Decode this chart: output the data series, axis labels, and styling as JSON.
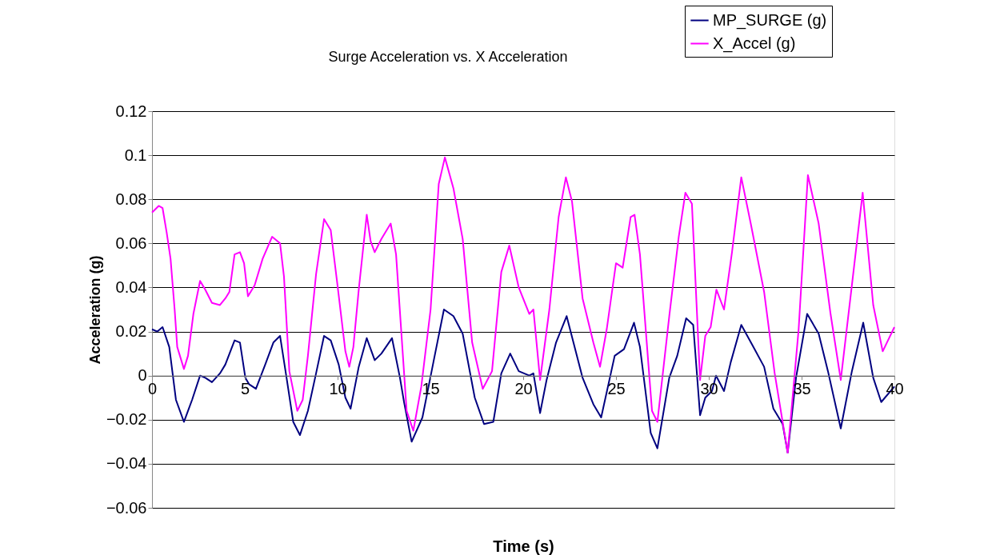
{
  "chart_data": {
    "type": "line",
    "title": "Surge Acceleration vs. X Acceleration",
    "xlabel": "Time (s)",
    "ylabel": "Acceleration (g)",
    "xlim": [
      0,
      40
    ],
    "xticks": [
      0,
      5,
      10,
      15,
      20,
      25,
      30,
      35,
      40
    ],
    "ylim": [
      -0.06,
      0.12
    ],
    "yticks": [
      -0.06,
      -0.04,
      -0.02,
      0,
      0.02,
      0.04,
      0.06,
      0.08,
      0.1,
      0.12
    ],
    "grid": "y",
    "legend": "top right",
    "marker": "none",
    "line_style": "solid",
    "series": [
      {
        "name": "MP_SURGE (g)",
        "color": "#000080",
        "x": [
          0,
          0.29,
          0.57,
          0.93,
          1.29,
          1.72,
          2.16,
          2.59,
          2.87,
          3.23,
          3.66,
          3.95,
          4.45,
          4.74,
          5.03,
          5.24,
          5.6,
          6.1,
          6.54,
          6.9,
          7.25,
          7.61,
          7.97,
          8.4,
          8.84,
          9.27,
          9.63,
          10.06,
          10.42,
          10.7,
          11.14,
          11.57,
          12.0,
          12.36,
          12.93,
          13.36,
          13.58,
          13.99,
          14.57,
          15.16,
          15.73,
          16.24,
          16.74,
          17.39,
          17.89,
          18.39,
          18.82,
          19.3,
          19.76,
          20.33,
          20.55,
          20.91,
          21.26,
          21.77,
          22.34,
          23.2,
          23.78,
          24.2,
          24.93,
          25.43,
          25.97,
          26.29,
          26.87,
          27.23,
          27.87,
          28.3,
          28.78,
          29.16,
          29.53,
          29.81,
          30.17,
          30.39,
          30.82,
          31.18,
          31.75,
          32.4,
          32.98,
          33.48,
          33.98,
          34.25,
          34.7,
          35.3,
          35.92,
          36.42,
          37.11,
          37.71,
          38.32,
          38.86,
          39.29,
          40.0
        ],
        "values": [
          0.021,
          0.02,
          0.022,
          0.013,
          -0.011,
          -0.021,
          -0.011,
          0.0,
          -0.001,
          -0.003,
          0.001,
          0.005,
          0.016,
          0.015,
          -0.001,
          -0.004,
          -0.006,
          0.005,
          0.015,
          0.018,
          -0.001,
          -0.021,
          -0.027,
          -0.016,
          0.001,
          0.018,
          0.016,
          0.005,
          -0.01,
          -0.015,
          0.004,
          0.017,
          0.007,
          0.01,
          0.017,
          -0.001,
          -0.012,
          -0.03,
          -0.019,
          0.006,
          0.03,
          0.027,
          0.019,
          -0.01,
          -0.022,
          -0.021,
          0.001,
          0.01,
          0.002,
          0.0,
          0.001,
          -0.017,
          -0.002,
          0.015,
          0.027,
          -0.001,
          -0.013,
          -0.019,
          0.009,
          0.012,
          0.024,
          0.013,
          -0.026,
          -0.033,
          -0.001,
          0.009,
          0.026,
          0.023,
          -0.018,
          -0.01,
          -0.007,
          0.0,
          -0.007,
          0.006,
          0.023,
          0.013,
          0.004,
          -0.015,
          -0.022,
          -0.035,
          -0.001,
          0.028,
          0.019,
          0.002,
          -0.024,
          0.002,
          0.024,
          -0.001,
          -0.012,
          -0.005
        ]
      },
      {
        "name": "X_Accel (g)",
        "color": "#ff00ff",
        "x": [
          0,
          0.36,
          0.57,
          0.79,
          1.0,
          1.22,
          1.36,
          1.72,
          1.94,
          2.23,
          2.59,
          2.87,
          3.23,
          3.66,
          3.95,
          4.17,
          4.45,
          4.74,
          4.96,
          5.17,
          5.53,
          5.96,
          6.47,
          6.9,
          7.11,
          7.4,
          7.83,
          8.12,
          8.4,
          8.84,
          9.27,
          9.63,
          9.98,
          10.42,
          10.63,
          10.85,
          11.14,
          11.57,
          11.78,
          12.0,
          12.36,
          12.86,
          13.15,
          13.72,
          14.08,
          14.51,
          15.01,
          15.45,
          15.78,
          16.24,
          16.74,
          17.25,
          17.82,
          18.32,
          18.82,
          19.25,
          19.76,
          20.33,
          20.55,
          20.91,
          21.41,
          21.91,
          22.3,
          22.63,
          23.2,
          23.78,
          24.14,
          24.5,
          25.0,
          25.36,
          25.79,
          26.0,
          26.29,
          26.94,
          27.23,
          27.87,
          28.38,
          28.74,
          29.09,
          29.53,
          29.81,
          30.1,
          30.41,
          30.82,
          31.25,
          31.75,
          32.26,
          32.98,
          33.55,
          34.25,
          34.84,
          35.34,
          35.92,
          36.56,
          37.11,
          37.71,
          38.29,
          38.86,
          39.37,
          40.0
        ],
        "values": [
          0.074,
          0.077,
          0.076,
          0.065,
          0.053,
          0.03,
          0.013,
          0.003,
          0.009,
          0.028,
          0.043,
          0.039,
          0.033,
          0.032,
          0.035,
          0.038,
          0.055,
          0.056,
          0.051,
          0.036,
          0.041,
          0.053,
          0.063,
          0.06,
          0.045,
          0.002,
          -0.016,
          -0.011,
          0.009,
          0.046,
          0.071,
          0.066,
          0.042,
          0.011,
          0.004,
          0.013,
          0.039,
          0.073,
          0.061,
          0.056,
          0.062,
          0.069,
          0.055,
          -0.016,
          -0.025,
          -0.005,
          0.03,
          0.087,
          0.099,
          0.085,
          0.062,
          0.015,
          -0.006,
          0.002,
          0.047,
          0.059,
          0.04,
          0.028,
          0.03,
          -0.002,
          0.03,
          0.072,
          0.09,
          0.079,
          0.035,
          0.015,
          0.004,
          0.021,
          0.051,
          0.049,
          0.072,
          0.073,
          0.055,
          -0.016,
          -0.021,
          0.027,
          0.063,
          0.083,
          0.078,
          -0.002,
          0.018,
          0.022,
          0.039,
          0.03,
          0.056,
          0.09,
          0.069,
          0.038,
          0.001,
          -0.035,
          0.021,
          0.091,
          0.069,
          0.028,
          -0.002,
          0.041,
          0.083,
          0.032,
          0.011,
          0.022
        ]
      }
    ]
  }
}
